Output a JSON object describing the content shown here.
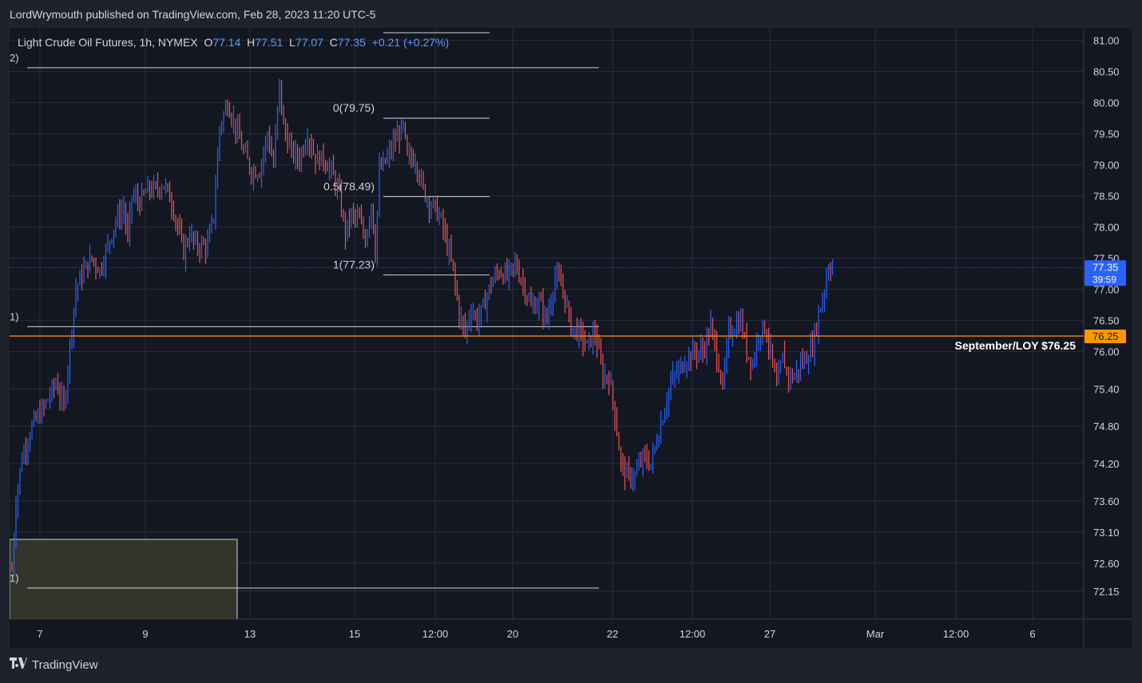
{
  "header": {
    "publisher_line": "LordWrymouth published on TradingView.com, Feb 28, 2023 11:20 UTC-5"
  },
  "legend": {
    "symbol": "Light Crude Oil Futures, 1h, NYMEX",
    "o_label": "O",
    "o": "77.14",
    "h_label": "H",
    "h": "77.51",
    "l_label": "L",
    "l": "77.07",
    "c_label": "C",
    "c": "77.35",
    "change": "+0.21 (+0.27%)"
  },
  "footer": {
    "brand": "TradingView",
    "logo_icon": "tradingview-logo-icon"
  },
  "colors": {
    "background": "#131722",
    "frame": "#1e222d",
    "grid": "#2a2e39",
    "up": "#2962ff",
    "down": "#ef5350",
    "accent_orange": "#ff9800",
    "price_tag_blue": "#2962ff",
    "text": "#d1d4dc"
  },
  "chart_data": {
    "type": "bar",
    "symbol": "Light Crude Oil Futures, 1h, NYMEX",
    "ylim": [
      71.7,
      81.2
    ],
    "y_ticks": [
      {
        "value": 81.0,
        "label": "81.00"
      },
      {
        "value": 80.5,
        "label": "80.50"
      },
      {
        "value": 80.0,
        "label": "80.00"
      },
      {
        "value": 79.5,
        "label": "79.50"
      },
      {
        "value": 79.0,
        "label": "79.00"
      },
      {
        "value": 78.5,
        "label": "78.50"
      },
      {
        "value": 78.0,
        "label": "78.00"
      },
      {
        "value": 77.5,
        "label": "77.50"
      },
      {
        "value": 77.0,
        "label": "77.00"
      },
      {
        "value": 76.5,
        "label": "76.50"
      },
      {
        "value": 76.0,
        "label": "76.00"
      },
      {
        "value": 75.4,
        "label": "75.40"
      },
      {
        "value": 74.8,
        "label": "74.80"
      },
      {
        "value": 74.2,
        "label": "74.20"
      },
      {
        "value": 73.6,
        "label": "73.60"
      },
      {
        "value": 73.1,
        "label": "73.10"
      },
      {
        "value": 72.6,
        "label": "72.60"
      },
      {
        "value": 72.15,
        "label": "72.15"
      }
    ],
    "x_ticks": [
      "7",
      "9",
      "13",
      "15",
      "12:00",
      "20",
      "22",
      "12:00",
      "27",
      "Mar",
      "12:00",
      "6"
    ],
    "close_path": [
      [
        0,
        72.5
      ],
      [
        2,
        73.6
      ],
      [
        5,
        74.3
      ],
      [
        10,
        74.8
      ],
      [
        16,
        75.1
      ],
      [
        22,
        75.5
      ],
      [
        26,
        75.1
      ],
      [
        29,
        76.1
      ],
      [
        32,
        77.0
      ],
      [
        36,
        77.3
      ],
      [
        40,
        77.5
      ],
      [
        44,
        77.3
      ],
      [
        48,
        77.7
      ],
      [
        52,
        78.1
      ],
      [
        56,
        78.3
      ],
      [
        58,
        77.8
      ],
      [
        60,
        78.5
      ],
      [
        64,
        78.4
      ],
      [
        68,
        78.6
      ],
      [
        72,
        78.6
      ],
      [
        76,
        78.7
      ],
      [
        80,
        78.4
      ],
      [
        83,
        78.0
      ],
      [
        86,
        77.6
      ],
      [
        89,
        77.9
      ],
      [
        92,
        77.7
      ],
      [
        95,
        77.7
      ],
      [
        98,
        77.7
      ],
      [
        101,
        78.2
      ],
      [
        104,
        79.6
      ],
      [
        108,
        80.0
      ],
      [
        112,
        79.6
      ],
      [
        116,
        79.2
      ],
      [
        120,
        78.9
      ],
      [
        124,
        78.9
      ],
      [
        128,
        79.5
      ],
      [
        131,
        79.0
      ],
      [
        134,
        80.3
      ],
      [
        136,
        79.6
      ],
      [
        140,
        79.2
      ],
      [
        144,
        79.1
      ],
      [
        148,
        79.5
      ],
      [
        152,
        79.1
      ],
      [
        156,
        79.1
      ],
      [
        160,
        78.9
      ],
      [
        164,
        78.5
      ],
      [
        167,
        77.9
      ],
      [
        170,
        78.2
      ],
      [
        174,
        78.1
      ],
      [
        177,
        77.8
      ],
      [
        180,
        78.4
      ],
      [
        182,
        77.6
      ],
      [
        184,
        78.9
      ],
      [
        188,
        79.1
      ],
      [
        192,
        79.4
      ],
      [
        196,
        79.6
      ],
      [
        198,
        79.1
      ],
      [
        202,
        79.1
      ],
      [
        206,
        78.6
      ],
      [
        209,
        78.4
      ],
      [
        212,
        78.3
      ],
      [
        215,
        78.1
      ],
      [
        218,
        77.7
      ],
      [
        221,
        77.3
      ],
      [
        224,
        76.6
      ],
      [
        227,
        76.3
      ],
      [
        230,
        76.7
      ],
      [
        233,
        76.5
      ],
      [
        236,
        76.7
      ],
      [
        240,
        77.1
      ],
      [
        244,
        77.3
      ],
      [
        248,
        77.2
      ],
      [
        252,
        77.4
      ],
      [
        256,
        77.1
      ],
      [
        260,
        76.7
      ],
      [
        264,
        76.8
      ],
      [
        268,
        76.5
      ],
      [
        272,
        77.2
      ],
      [
        276,
        77.0
      ],
      [
        280,
        76.4
      ],
      [
        284,
        76.3
      ],
      [
        288,
        76.1
      ],
      [
        292,
        76.3
      ],
      [
        296,
        75.6
      ],
      [
        299,
        75.6
      ],
      [
        302,
        75.0
      ],
      [
        305,
        74.2
      ],
      [
        308,
        74.0
      ],
      [
        312,
        74.0
      ],
      [
        316,
        74.3
      ],
      [
        320,
        74.2
      ],
      [
        324,
        74.7
      ],
      [
        327,
        75.1
      ],
      [
        330,
        75.5
      ],
      [
        334,
        75.7
      ],
      [
        338,
        75.9
      ],
      [
        342,
        76.0
      ],
      [
        346,
        76.0
      ],
      [
        350,
        76.4
      ],
      [
        354,
        75.8
      ],
      [
        356,
        75.4
      ],
      [
        359,
        76.3
      ],
      [
        362,
        76.4
      ],
      [
        365,
        76.5
      ],
      [
        368,
        76.0
      ],
      [
        371,
        75.8
      ],
      [
        374,
        76.3
      ],
      [
        377,
        76.4
      ],
      [
        380,
        76.0
      ],
      [
        383,
        75.4
      ],
      [
        386,
        75.9
      ],
      [
        389,
        75.6
      ],
      [
        392,
        75.6
      ],
      [
        395,
        75.8
      ],
      [
        398,
        75.9
      ],
      [
        401,
        76.1
      ],
      [
        404,
        76.6
      ],
      [
        407,
        77.0
      ],
      [
        409,
        77.4
      ],
      [
        411,
        77.35
      ]
    ],
    "axis_tags": [
      {
        "price": 77.35,
        "label": "77.35",
        "sub": "39:59",
        "color": "#2962ff"
      },
      {
        "price": 76.25,
        "label": "76.25",
        "color": "#ff9800"
      }
    ],
    "horizontal_line": {
      "price": 76.25,
      "label": "September/LOY $76.25",
      "color": "#ff9800"
    },
    "fib_levels": [
      {
        "price": 79.75,
        "label": "0(79.75)"
      },
      {
        "price": 78.49,
        "label": "0.5(78.49)"
      },
      {
        "price": 77.23,
        "label": "1(77.23)"
      }
    ],
    "left_level_lines": [
      {
        "price": 80.56,
        "label": "2)"
      },
      {
        "price": 76.4,
        "label": "1)"
      },
      {
        "price": 72.2,
        "label": "1)"
      }
    ],
    "grid": true
  }
}
